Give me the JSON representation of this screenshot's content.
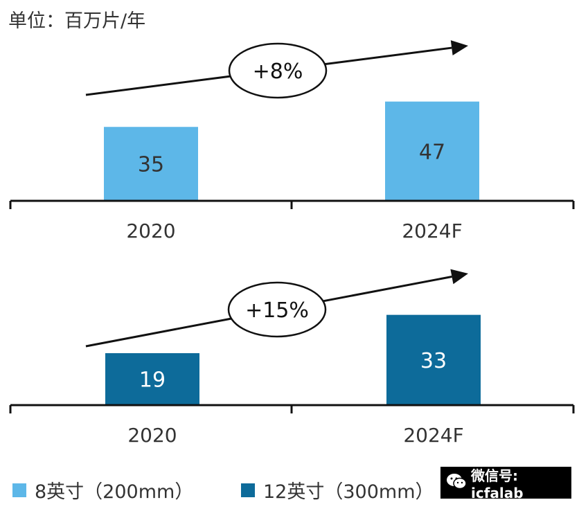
{
  "unit_label": "单位：百万片/年",
  "chart_data": [
    {
      "type": "bar",
      "categories": [
        "2020",
        "2024F"
      ],
      "series": [
        {
          "name": "8英寸（200mm）",
          "values": [
            35,
            47
          ]
        }
      ],
      "annotation": "+8%",
      "color": "#5db7e8"
    },
    {
      "type": "bar",
      "categories": [
        "2020",
        "2024F"
      ],
      "series": [
        {
          "name": "12英寸（300mm）",
          "values": [
            19,
            33
          ]
        }
      ],
      "annotation": "+15%",
      "color": "#0d6b9a"
    }
  ],
  "legend": [
    {
      "label": "8英寸（200mm）",
      "color": "#5db7e8"
    },
    {
      "label": "12英寸（300mm）",
      "color": "#0d6b9a"
    }
  ],
  "watermark": {
    "icon": "wechat-icon",
    "text": "微信号: icfalab"
  }
}
